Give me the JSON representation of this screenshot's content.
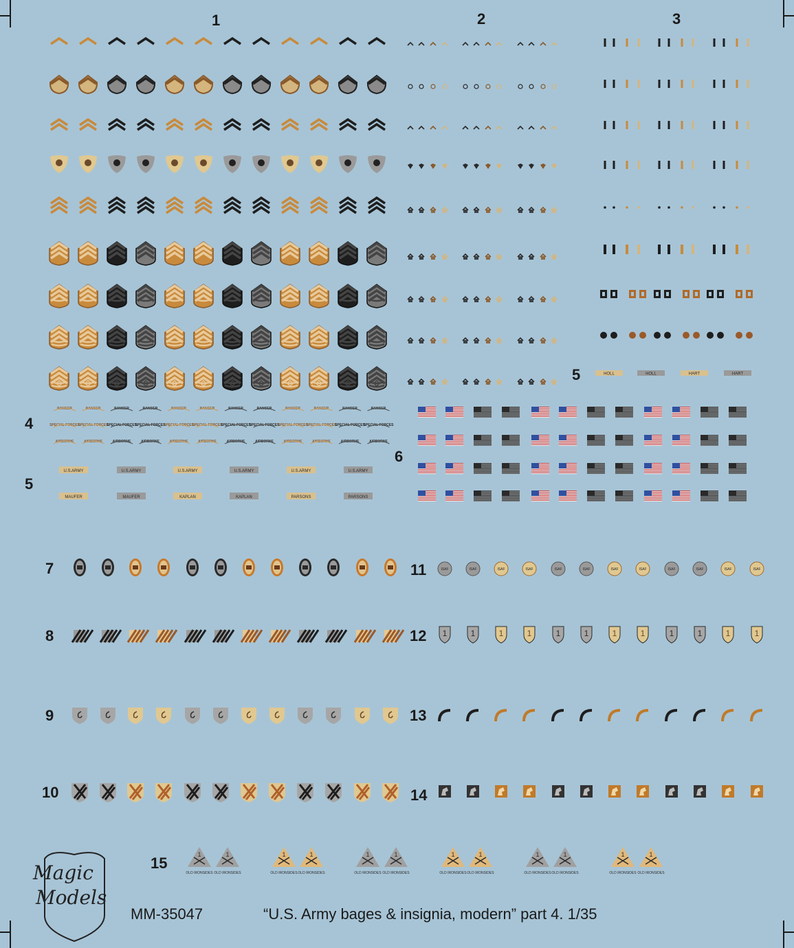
{
  "sections": {
    "s1": "1",
    "s2": "2",
    "s3": "3",
    "s4": "4",
    "s5a": "5",
    "s5b": "5",
    "s6": "6",
    "s7": "7",
    "s8": "8",
    "s9": "9",
    "s10": "10",
    "s11": "11",
    "s12": "12",
    "s13": "13",
    "s14": "14",
    "s15": "15"
  },
  "tabs": {
    "ranger": "RANGER",
    "special_forces": "SPECIAL FORCES",
    "airborne": "AIRBORNE"
  },
  "tapes": {
    "us_army": "U.S.ARMY",
    "names_left": [
      "MAUFER",
      "MAUFER",
      "KAPLAN",
      "KAPLAN",
      "PARSONS",
      "PARSONS"
    ],
    "names_right": [
      "HOLL",
      "HOLL",
      "HART",
      "HART"
    ]
  },
  "patches": {
    "isaf": "ISAF",
    "first_infantry": "1",
    "first_armored": "1",
    "old_ironsides": "OLD IRONSIDES"
  },
  "brand": {
    "line1": "Magic",
    "line2": "Models"
  },
  "footer": {
    "code": "MM-35047",
    "title": "“U.S. Army bages & insignia, modern” part 4. 1/35"
  },
  "colors": {
    "background": "#a7c4d6",
    "tan": "#d9c08e",
    "brown": "#9a5a2a",
    "black": "#1e1e1e",
    "grey": "#9a9a9a",
    "dark": "#2a2a2a"
  }
}
